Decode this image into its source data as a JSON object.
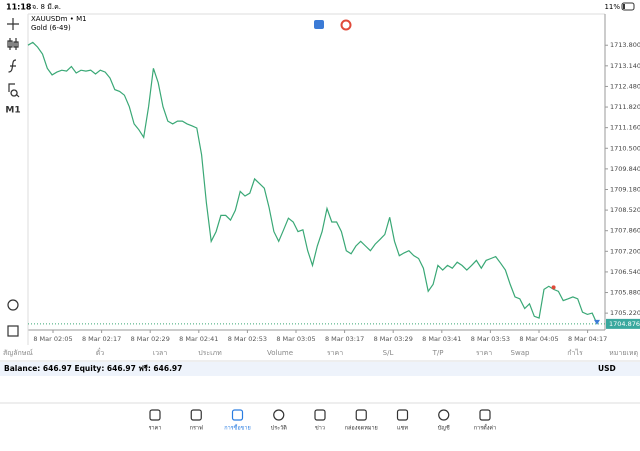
{
  "status": {
    "time": "11:18",
    "date": "จ. 8 มี.ค.",
    "battery": "11%"
  },
  "chart_header": {
    "symbol": "XAUUSDm • M1",
    "description": "Gold (6-49)"
  },
  "toolbar": {
    "timeframe": "M1"
  },
  "chart_data": {
    "type": "line",
    "color": "#3aa876",
    "values": [
      1713.8,
      1713.89,
      1713.74,
      1713.52,
      1713.06,
      1712.85,
      1712.94,
      1713.0,
      1712.97,
      1713.12,
      1712.91,
      1713.0,
      1712.97,
      1713.0,
      1712.88,
      1713.0,
      1712.94,
      1712.75,
      1712.38,
      1712.32,
      1712.2,
      1711.83,
      1711.28,
      1711.09,
      1710.85,
      1711.83,
      1713.06,
      1712.6,
      1711.83,
      1711.37,
      1711.28,
      1711.37,
      1711.37,
      1711.28,
      1711.22,
      1711.15,
      1710.29,
      1708.75,
      1707.52,
      1707.83,
      1708.35,
      1708.35,
      1708.2,
      1708.51,
      1709.12,
      1708.97,
      1709.06,
      1709.52,
      1709.37,
      1709.22,
      1708.6,
      1707.83,
      1707.52,
      1707.89,
      1708.26,
      1708.14,
      1707.83,
      1707.89,
      1707.22,
      1706.75,
      1707.37,
      1707.83,
      1708.57,
      1708.14,
      1708.14,
      1707.83,
      1707.22,
      1707.12,
      1707.37,
      1707.52,
      1707.37,
      1707.22,
      1707.43,
      1707.58,
      1707.74,
      1708.29,
      1707.52,
      1707.06,
      1707.15,
      1707.22,
      1707.06,
      1706.97,
      1706.66,
      1705.92,
      1706.14,
      1706.75,
      1706.6,
      1706.75,
      1706.66,
      1706.85,
      1706.75,
      1706.6,
      1706.75,
      1706.91,
      1706.66,
      1706.91,
      1706.97,
      1707.03,
      1706.82,
      1706.6,
      1706.14,
      1705.74,
      1705.68,
      1705.37,
      1705.52,
      1705.12,
      1705.06,
      1705.98,
      1706.08,
      1705.98,
      1705.92,
      1705.62,
      1705.68,
      1705.74,
      1705.68,
      1705.25,
      1705.18,
      1705.22,
      1704.88
    ],
    "ylim": [
      1714.8,
      1704.68
    ],
    "yticks": [
      {
        "value": 1713.8,
        "label": "1713.800"
      },
      {
        "value": 1713.14,
        "label": "1713.140"
      },
      {
        "value": 1712.48,
        "label": "1712.480"
      },
      {
        "value": 1711.82,
        "label": "1711.820"
      },
      {
        "value": 1711.16,
        "label": "1711.160"
      },
      {
        "value": 1710.5,
        "label": "1710.500"
      },
      {
        "value": 1709.84,
        "label": "1709.840"
      },
      {
        "value": 1709.18,
        "label": "1709.180"
      },
      {
        "value": 1708.52,
        "label": "1708.520"
      },
      {
        "value": 1707.86,
        "label": "1707.860"
      },
      {
        "value": 1707.2,
        "label": "1707.200"
      },
      {
        "value": 1706.54,
        "label": "1706.540"
      },
      {
        "value": 1705.88,
        "label": "1705.880"
      },
      {
        "value": 1705.22,
        "label": "1705.220"
      }
    ],
    "current_price": {
      "value": 1704.876,
      "label": "1704.876"
    },
    "xticks": [
      "8 Mar 02:05",
      "8 Mar 02:17",
      "8 Mar 02:29",
      "8 Mar 02:41",
      "8 Mar 02:53",
      "8 Mar 03:05",
      "8 Mar 03:17",
      "8 Mar 03:29",
      "8 Mar 03:41",
      "8 Mar 03:53",
      "8 Mar 04:05",
      "8 Mar 04:17"
    ]
  },
  "table": {
    "columns": [
      "สัญลักษณ์",
      "ตั๋ว",
      "เวลา",
      "ประเภท",
      "Volume",
      "ราคา",
      "S/L",
      "T/P",
      "ราคา",
      "Swap",
      "กำไร",
      "หมายเหตุ"
    ],
    "summary": "Balance: 646.97  Equity: 646.97  ฟรี: 646.97",
    "currency": "USD"
  },
  "tabs": [
    "ราคา",
    "กราฟ",
    "การซื้อขาย",
    "ประวัติ",
    "ข่าว",
    "กล่องจดหมาย",
    "แชท",
    "บัญชี",
    "การตั้งค่า"
  ]
}
